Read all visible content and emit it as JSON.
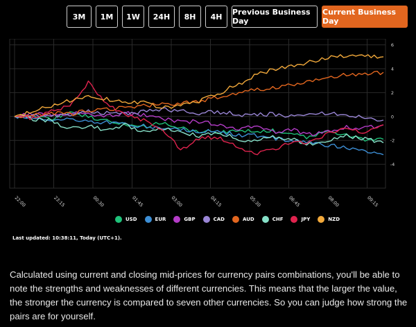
{
  "tabs": [
    {
      "label": "3M",
      "active": false
    },
    {
      "label": "1M",
      "active": false
    },
    {
      "label": "1W",
      "active": false
    },
    {
      "label": "24H",
      "active": false
    },
    {
      "label": "8H",
      "active": false
    },
    {
      "label": "4H",
      "active": false
    },
    {
      "label": "Previous Business Day",
      "active": false
    },
    {
      "label": "Current Business Day",
      "active": true
    }
  ],
  "legend": [
    {
      "name": "USD",
      "color": "#1fc27a"
    },
    {
      "name": "EUR",
      "color": "#3d8fd6"
    },
    {
      "name": "GBP",
      "color": "#b43cc8"
    },
    {
      "name": "CAD",
      "color": "#9a86d6"
    },
    {
      "name": "AUD",
      "color": "#e2661f"
    },
    {
      "name": "CHF",
      "color": "#86e0c8"
    },
    {
      "name": "JPY",
      "color": "#e0234e"
    },
    {
      "name": "NZD",
      "color": "#f2a93b"
    }
  ],
  "last_updated": "Last updated: 10:38:11, Today (UTC+1).",
  "description": "Calculated using current and closing mid-prices for currency pairs combinations, you'll be able to note the strengths and weaknesses of different currencies. This means that the larger the value, the stronger the currency is compared to seven other currencies. So you can judge how strong the pairs are for yourself.",
  "chart_data": {
    "type": "line",
    "x_ticks": [
      "22:00",
      "23:15",
      "00:30",
      "01:45",
      "03:00",
      "04:15",
      "05:30",
      "06:45",
      "08:00",
      "09:15"
    ],
    "y_ticks": [
      6,
      4,
      2,
      0,
      -2,
      -4
    ],
    "ylim": [
      -6,
      6.5
    ],
    "grid": true,
    "legend_position": "bottom",
    "series": [
      {
        "name": "USD",
        "color": "#1fc27a",
        "values": [
          0,
          0.1,
          -0.2,
          0.3,
          0.0,
          -0.4,
          -0.7,
          -0.9,
          -0.5,
          -1.0,
          -1.2,
          -1.4,
          -1.1,
          -1.3,
          -1.2,
          -1.5,
          -1.8,
          -1.2,
          -1.5,
          -2.0,
          -1.9
        ]
      },
      {
        "name": "EUR",
        "color": "#3d8fd6",
        "values": [
          0,
          -0.1,
          -0.3,
          -0.2,
          -0.4,
          -0.5,
          -0.7,
          -0.8,
          -1.0,
          -1.1,
          -1.2,
          -1.3,
          -1.5,
          -1.6,
          -1.8,
          -2.0,
          -2.2,
          -2.4,
          -2.6,
          -2.9,
          -3.2
        ]
      },
      {
        "name": "GBP",
        "color": "#b43cc8",
        "values": [
          0,
          0.2,
          0.1,
          0.3,
          0.2,
          0.0,
          0.3,
          0.1,
          -0.2,
          -0.5,
          -0.4,
          -0.7,
          -1.0,
          -0.8,
          -1.3,
          -1.1,
          -1.5,
          -1.2,
          -0.9,
          -1.0,
          -0.7
        ]
      },
      {
        "name": "CAD",
        "color": "#9a86d6",
        "values": [
          0,
          0.1,
          0.0,
          0.2,
          0.4,
          0.3,
          0.2,
          0.4,
          0.6,
          0.5,
          0.3,
          0.4,
          0.2,
          0.1,
          0.2,
          0.0,
          0.1,
          0.3,
          0.1,
          -0.1,
          -0.3
        ]
      },
      {
        "name": "AUD",
        "color": "#e2661f",
        "values": [
          0,
          0.1,
          0.3,
          0.2,
          0.5,
          0.6,
          0.8,
          0.9,
          1.0,
          1.1,
          1.3,
          1.6,
          1.9,
          2.2,
          2.4,
          2.6,
          2.9,
          3.2,
          3.5,
          3.6,
          3.7
        ]
      },
      {
        "name": "CHF",
        "color": "#86e0c8",
        "values": [
          0,
          -0.2,
          -0.4,
          -1.0,
          -0.8,
          -1.2,
          -0.7,
          -1.3,
          -1.0,
          -1.4,
          -1.6,
          -1.4,
          -1.8,
          -2.1,
          -1.7,
          -1.9,
          -2.3,
          -2.0,
          -1.6,
          -1.9,
          -2.2
        ]
      },
      {
        "name": "JPY",
        "color": "#e0234e",
        "values": [
          0,
          -0.1,
          0.4,
          0.9,
          2.9,
          1.0,
          0.2,
          -0.3,
          -1.0,
          -2.8,
          -1.8,
          -1.7,
          -2.5,
          -3.1,
          -2.8,
          -2.1,
          -2.2,
          -1.4,
          -1.0,
          -1.3,
          -0.7
        ]
      },
      {
        "name": "NZD",
        "color": "#f2a93b",
        "values": [
          0,
          0.4,
          0.9,
          1.3,
          1.6,
          1.5,
          1.1,
          1.2,
          0.7,
          1.0,
          1.3,
          1.9,
          2.6,
          3.4,
          3.9,
          4.2,
          4.6,
          4.9,
          5.1,
          5.0,
          5.0
        ]
      }
    ]
  }
}
